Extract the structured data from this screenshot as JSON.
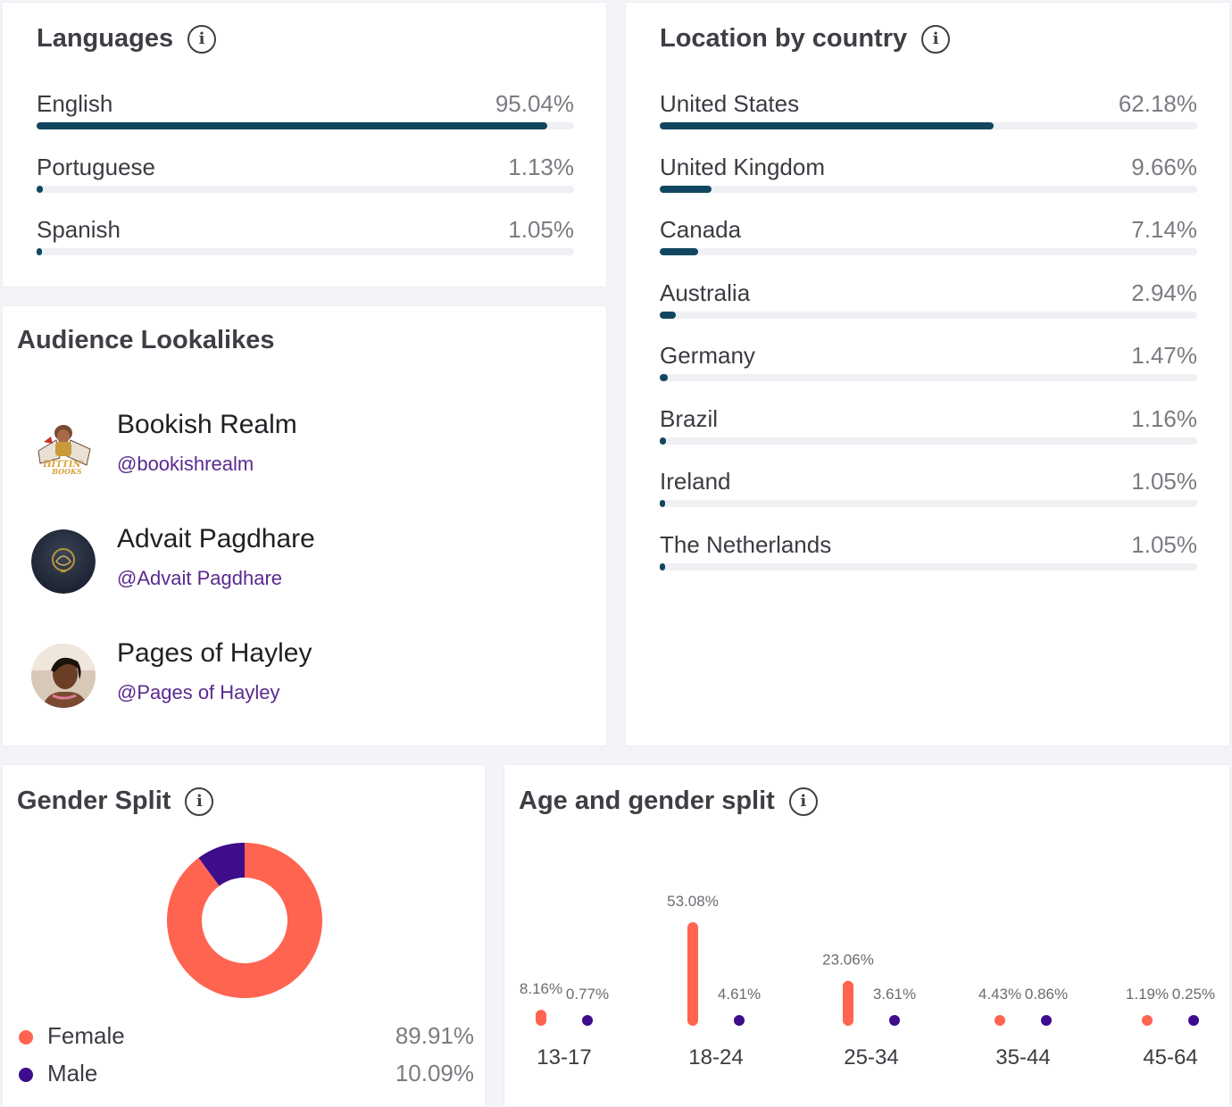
{
  "languages": {
    "title": "Languages",
    "items": [
      {
        "label": "English",
        "pct": "95.04%",
        "value": 95.04
      },
      {
        "label": "Portuguese",
        "pct": "1.13%",
        "value": 1.13
      },
      {
        "label": "Spanish",
        "pct": "1.05%",
        "value": 1.05
      }
    ]
  },
  "location": {
    "title": "Location by country",
    "items": [
      {
        "label": "United States",
        "pct": "62.18%",
        "value": 62.18
      },
      {
        "label": "United Kingdom",
        "pct": "9.66%",
        "value": 9.66
      },
      {
        "label": "Canada",
        "pct": "7.14%",
        "value": 7.14
      },
      {
        "label": "Australia",
        "pct": "2.94%",
        "value": 2.94
      },
      {
        "label": "Germany",
        "pct": "1.47%",
        "value": 1.47
      },
      {
        "label": "Brazil",
        "pct": "1.16%",
        "value": 1.16
      },
      {
        "label": "Ireland",
        "pct": "1.05%",
        "value": 1.05
      },
      {
        "label": "The Netherlands",
        "pct": "1.05%",
        "value": 1.05
      }
    ]
  },
  "lookalikes": {
    "title": "Audience Lookalikes",
    "items": [
      {
        "name": "Bookish Realm",
        "handle": "@bookishrealm"
      },
      {
        "name": "Advait Pagdhare",
        "handle": "@Advait Pagdhare"
      },
      {
        "name": "Pages of Hayley",
        "handle": "@Pages of Hayley"
      }
    ]
  },
  "gender": {
    "title": "Gender Split",
    "items": [
      {
        "label": "Female",
        "pct": "89.91%",
        "value": 89.91,
        "color": "#ff6450"
      },
      {
        "label": "Male",
        "pct": "10.09%",
        "value": 10.09,
        "color": "#3d0d8c"
      }
    ]
  },
  "age": {
    "title": "Age and gender split"
  },
  "colors": {
    "bar": "#124660",
    "female": "#ff6450",
    "male": "#3d0d8c",
    "handle": "#5a2a8f"
  },
  "chart_data": [
    {
      "type": "pie",
      "title": "Gender Split",
      "categories": [
        "Female",
        "Male"
      ],
      "values": [
        89.91,
        10.09
      ],
      "colors": [
        "#ff6450",
        "#3d0d8c"
      ]
    },
    {
      "type": "bar",
      "title": "Age and gender split",
      "categories": [
        "13-17",
        "18-24",
        "25-34",
        "35-44",
        "45-64"
      ],
      "series": [
        {
          "name": "Female",
          "values": [
            8.16,
            53.08,
            23.06,
            4.43,
            1.19
          ],
          "labels": [
            "8.16%",
            "53.08%",
            "23.06%",
            "4.43%",
            "1.19%"
          ],
          "color": "#ff6450"
        },
        {
          "name": "Male",
          "values": [
            0.77,
            4.61,
            3.61,
            0.86,
            0.25
          ],
          "labels": [
            "0.77%",
            "4.61%",
            "3.61%",
            "0.86%",
            "0.25%"
          ],
          "color": "#3d0d8c"
        }
      ]
    }
  ]
}
